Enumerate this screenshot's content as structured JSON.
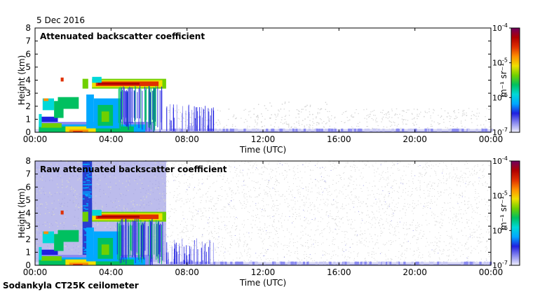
{
  "header": {
    "date": "5 Dec 2016"
  },
  "footer": {
    "site": "Sodankyla CT25K ceilometer"
  },
  "colors": {
    "colormap": [
      "#f0f0ff",
      "#8a8af0",
      "#2020e0",
      "#00a8ff",
      "#00d8d8",
      "#00c060",
      "#70d000",
      "#f0e000",
      "#ff9000",
      "#e03000",
      "#b00000",
      "#700060"
    ],
    "noise_gray": "#d4d4d4",
    "background": "#ffffff"
  },
  "chart_data": [
    {
      "type": "heatmap",
      "title": "Attenuated backscatter coefficient",
      "xlabel": "Time (UTC)",
      "ylabel": "Height (km)",
      "xlim": [
        "00:00",
        "24:00"
      ],
      "x_ticks": [
        "00:00",
        "04:00",
        "08:00",
        "12:00",
        "16:00",
        "20:00",
        "00:00"
      ],
      "ylim": [
        0,
        8
      ],
      "y_ticks": [
        0,
        1,
        2,
        3,
        4,
        5,
        6,
        7,
        8
      ],
      "colorbar": {
        "label": "m⁻¹ sr⁻¹",
        "scale": "log",
        "range": [
          1e-07,
          0.0001
        ],
        "ticks": [
          {
            "base": "10",
            "exp": "-4"
          },
          {
            "base": "10",
            "exp": "-5"
          },
          {
            "base": "10",
            "exp": "-6"
          },
          {
            "base": "10",
            "exp": "-7"
          }
        ]
      },
      "features": [
        {
          "name": "cloud layer",
          "hours": [
            2.5,
            6.9
          ],
          "height_km": [
            3.2,
            4.1
          ]
        },
        {
          "name": "boundary layer",
          "hours": [
            0.0,
            6.2
          ],
          "height_km": [
            0.0,
            0.8
          ]
        },
        {
          "name": "precipitation fall streaks",
          "hours": [
            4.3,
            6.6
          ],
          "height_km": [
            0.0,
            3.8
          ]
        }
      ]
    },
    {
      "type": "heatmap",
      "title": "Raw attenuated backscatter coefficient",
      "xlabel": "Time (UTC)",
      "ylabel": "Height (km)",
      "xlim": [
        "00:00",
        "24:00"
      ],
      "x_ticks": [
        "00:00",
        "04:00",
        "08:00",
        "12:00",
        "16:00",
        "20:00",
        "00:00"
      ],
      "ylim": [
        0,
        8
      ],
      "y_ticks": [
        0,
        1,
        2,
        3,
        4,
        5,
        6,
        7,
        8
      ],
      "colorbar": {
        "label": "m⁻¹ sr⁻¹",
        "scale": "log",
        "range": [
          1e-07,
          0.0001
        ],
        "ticks": [
          {
            "base": "10",
            "exp": "-4"
          },
          {
            "base": "10",
            "exp": "-5"
          },
          {
            "base": "10",
            "exp": "-6"
          },
          {
            "base": "10",
            "exp": "-7"
          }
        ]
      },
      "features": [
        {
          "name": "cloud layer",
          "hours": [
            2.5,
            6.9
          ],
          "height_km": [
            3.2,
            4.1
          ]
        },
        {
          "name": "boundary layer",
          "hours": [
            0.0,
            6.2
          ],
          "height_km": [
            0.0,
            0.8
          ]
        },
        {
          "name": "noise region",
          "hours": [
            0.0,
            6.9
          ],
          "height_km": [
            0.0,
            8.0
          ]
        }
      ]
    }
  ]
}
